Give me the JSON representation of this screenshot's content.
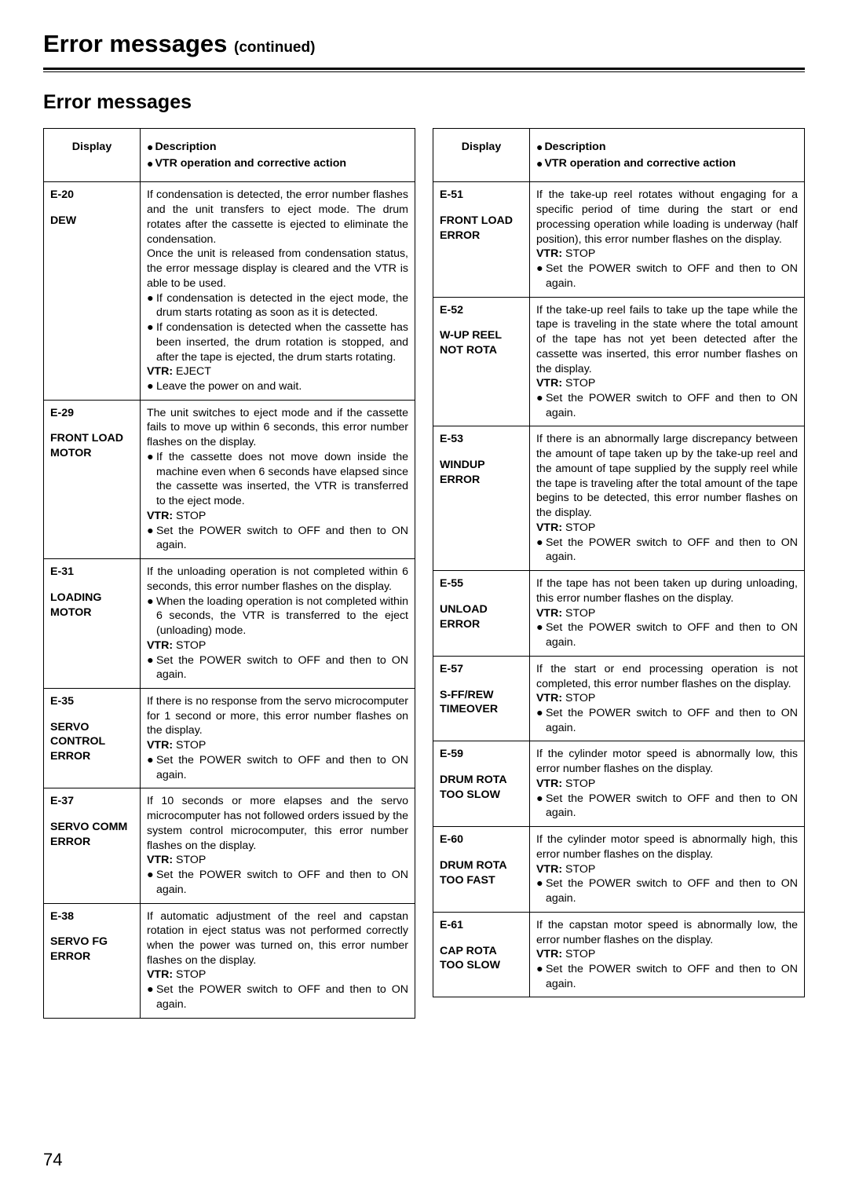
{
  "page": {
    "title_main": "Error messages",
    "title_continued": "(continued)",
    "section_title": "Error messages",
    "page_number": "74",
    "header": {
      "display": "Display",
      "desc_line1": "Description",
      "desc_line2": "VTR operation and corrective action"
    }
  },
  "left": [
    {
      "code": "E-20",
      "name": "DEW",
      "body_paras": [
        "If condensation is detected, the error number flashes and the unit transfers to eject mode. The drum rotates after the cassette is ejected to eliminate the condensation.",
        "Once the unit is released from condensation status, the error message display is cleared and the VTR is able to be used."
      ],
      "bullets": [
        "If condensation is detected in the eject mode, the drum starts rotating as soon as it is detected.",
        "If condensation is detected when the cassette has been inserted, the drum rotation is stopped, and after the tape is ejected, the drum starts rotating."
      ],
      "vtr": "EJECT",
      "actions": [
        "Leave the power on and wait."
      ]
    },
    {
      "code": "E-29",
      "name": "FRONT LOAD MOTOR",
      "body_paras": [
        "The unit switches to eject mode and if the cassette fails to move up within 6 seconds, this error number flashes on the display."
      ],
      "bullets": [
        "If the cassette does not move down inside the machine even when 6 seconds have elapsed since the cassette was inserted, the VTR is transferred to the eject mode."
      ],
      "vtr": "STOP",
      "actions": [
        "Set the POWER switch to OFF and then to ON again."
      ]
    },
    {
      "code": "E-31",
      "name": "LOADING MOTOR",
      "body_paras": [
        "If the unloading operation is not completed within 6 seconds, this error number flashes on the display."
      ],
      "bullets": [
        "When the loading operation is not completed within 6 seconds, the VTR is transferred to the eject (unloading) mode."
      ],
      "vtr": "STOP",
      "actions": [
        "Set the POWER switch to OFF and then to ON again."
      ]
    },
    {
      "code": "E-35",
      "name": "SERVO CONTROL ERROR",
      "body_paras": [
        "If there is no response from the servo microcomputer for 1 second or more, this error number flashes on the display."
      ],
      "bullets": [],
      "vtr": "STOP",
      "actions": [
        "Set the POWER switch to OFF and then to ON again."
      ]
    },
    {
      "code": "E-37",
      "name": "SERVO COMM ERROR",
      "body_paras": [
        "If 10 seconds or more elapses and the servo microcomputer has not followed orders issued by the system control microcomputer, this error number flashes on the display."
      ],
      "bullets": [],
      "vtr": "STOP",
      "actions": [
        "Set the POWER switch to OFF and then to ON again."
      ]
    },
    {
      "code": "E-38",
      "name": "SERVO FG ERROR",
      "body_paras": [
        "If automatic adjustment of the reel and capstan rotation in eject status was not performed correctly when the power was turned on, this error number flashes on the display."
      ],
      "bullets": [],
      "vtr": "STOP",
      "actions": [
        "Set the POWER switch to OFF and then to ON again."
      ]
    }
  ],
  "right": [
    {
      "code": "E-51",
      "name": "FRONT LOAD ERROR",
      "body_paras": [
        "If the take-up reel rotates without engaging for a specific period of time during the start or end processing operation while loading is underway (half position), this error number flashes on the display."
      ],
      "bullets": [],
      "vtr": "STOP",
      "actions": [
        "Set the POWER switch to OFF and then to ON again."
      ]
    },
    {
      "code": "E-52",
      "name": "W-UP REEL NOT ROTA",
      "body_paras": [
        "If the take-up reel fails to take up the tape while the tape is traveling in the state where the total amount of the tape has not yet been detected after the cassette was inserted, this error number flashes on the display."
      ],
      "bullets": [],
      "vtr": "STOP",
      "actions": [
        "Set the POWER switch to OFF and then to ON again."
      ]
    },
    {
      "code": "E-53",
      "name": "WINDUP ERROR",
      "body_paras": [
        "If there is an abnormally large discrepancy between the amount of tape taken up by the take-up reel and the amount of tape supplied by the supply reel while the tape is traveling after the total amount of the tape begins to be detected, this error number flashes on the display."
      ],
      "bullets": [],
      "vtr": "STOP",
      "actions": [
        "Set the POWER switch to OFF and then to ON again."
      ]
    },
    {
      "code": "E-55",
      "name": "UNLOAD ERROR",
      "body_paras": [
        "If the tape has not been taken up during unloading, this error number flashes on the display."
      ],
      "bullets": [],
      "vtr": "STOP",
      "actions": [
        "Set the POWER switch to OFF and then to ON again."
      ]
    },
    {
      "code": "E-57",
      "name": "S-FF/REW TIMEOVER",
      "body_paras": [
        "If the start or end processing operation is not completed, this error number flashes on the display."
      ],
      "bullets": [],
      "vtr": "STOP",
      "actions": [
        "Set the POWER switch to OFF and then to ON again."
      ]
    },
    {
      "code": "E-59",
      "name": "DRUM ROTA TOO SLOW",
      "body_paras": [
        "If the cylinder motor speed is abnormally low, this error number flashes on the display."
      ],
      "bullets": [],
      "vtr": "STOP",
      "actions": [
        "Set the POWER switch to OFF and then to ON again."
      ]
    },
    {
      "code": "E-60",
      "name": "DRUM ROTA TOO FAST",
      "body_paras": [
        "If the cylinder motor speed is abnormally high, this error number flashes on the display."
      ],
      "bullets": [],
      "vtr": "STOP",
      "actions": [
        "Set the POWER switch to OFF and then to ON again."
      ]
    },
    {
      "code": "E-61",
      "name": "CAP ROTA TOO SLOW",
      "body_paras": [
        "If the capstan motor speed is abnormally low, the error number flashes on the display."
      ],
      "bullets": [],
      "vtr": "STOP",
      "actions": [
        "Set the POWER switch to OFF and then to ON again."
      ]
    }
  ]
}
